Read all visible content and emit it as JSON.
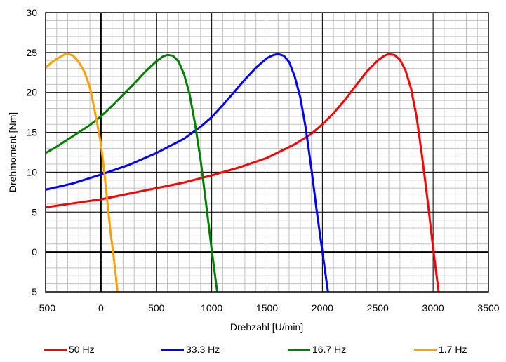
{
  "chart_data": {
    "type": "line",
    "title": "",
    "xlabel": "Drehzahl [U/min]",
    "ylabel": "Drehmoment [Nm]",
    "xlim": [
      -500,
      3500
    ],
    "ylim": [
      -5,
      30
    ],
    "x_ticks": [
      -500,
      0,
      500,
      1000,
      1500,
      2000,
      2500,
      3000,
      3500
    ],
    "y_ticks": [
      -5,
      0,
      5,
      10,
      15,
      20,
      25,
      30
    ],
    "grid": true,
    "minor_grid": {
      "x_step": 100,
      "y_step": 1
    },
    "legend_position": "bottom",
    "series": [
      {
        "name": "50 Hz",
        "color": "#ff0000",
        "points": [
          [
            -500,
            5.6
          ],
          [
            -250,
            6.1
          ],
          [
            0,
            6.6
          ],
          [
            250,
            7.3
          ],
          [
            500,
            8.0
          ],
          [
            750,
            8.7
          ],
          [
            1000,
            9.6
          ],
          [
            1250,
            10.6
          ],
          [
            1500,
            11.8
          ],
          [
            1750,
            13.5
          ],
          [
            1900,
            14.8
          ],
          [
            2000,
            16.0
          ],
          [
            2100,
            17.4
          ],
          [
            2200,
            19.0
          ],
          [
            2300,
            20.8
          ],
          [
            2400,
            22.6
          ],
          [
            2500,
            24.0
          ],
          [
            2560,
            24.6
          ],
          [
            2600,
            24.8
          ],
          [
            2650,
            24.7
          ],
          [
            2700,
            24.1
          ],
          [
            2750,
            22.8
          ],
          [
            2800,
            20.5
          ],
          [
            2850,
            17.0
          ],
          [
            2900,
            12.0
          ],
          [
            2950,
            6.5
          ],
          [
            3000,
            0.5
          ],
          [
            3050,
            -5.0
          ]
        ]
      },
      {
        "name": "33.3 Hz",
        "color": "#0000ff",
        "points": [
          [
            -500,
            7.8
          ],
          [
            -250,
            8.6
          ],
          [
            0,
            9.7
          ],
          [
            250,
            10.9
          ],
          [
            500,
            12.4
          ],
          [
            750,
            14.2
          ],
          [
            900,
            15.7
          ],
          [
            1000,
            16.9
          ],
          [
            1100,
            18.4
          ],
          [
            1200,
            20.0
          ],
          [
            1300,
            21.6
          ],
          [
            1400,
            23.1
          ],
          [
            1500,
            24.3
          ],
          [
            1560,
            24.7
          ],
          [
            1600,
            24.8
          ],
          [
            1650,
            24.6
          ],
          [
            1700,
            23.8
          ],
          [
            1750,
            22.0
          ],
          [
            1800,
            19.4
          ],
          [
            1850,
            15.5
          ],
          [
            1900,
            10.5
          ],
          [
            1950,
            5.0
          ],
          [
            2000,
            0.0
          ],
          [
            2050,
            -5.0
          ]
        ]
      },
      {
        "name": "16.7 Hz",
        "color": "#008000",
        "points": [
          [
            -500,
            12.4
          ],
          [
            -400,
            13.2
          ],
          [
            -300,
            14.1
          ],
          [
            -200,
            15.0
          ],
          [
            -100,
            15.9
          ],
          [
            0,
            17.0
          ],
          [
            100,
            18.3
          ],
          [
            200,
            19.7
          ],
          [
            300,
            21.1
          ],
          [
            400,
            22.6
          ],
          [
            500,
            23.9
          ],
          [
            560,
            24.5
          ],
          [
            600,
            24.7
          ],
          [
            650,
            24.6
          ],
          [
            700,
            23.9
          ],
          [
            750,
            22.3
          ],
          [
            800,
            19.8
          ],
          [
            850,
            16.0
          ],
          [
            900,
            11.5
          ],
          [
            950,
            6.0
          ],
          [
            1000,
            0.3
          ],
          [
            1050,
            -5.0
          ]
        ]
      },
      {
        "name": "1.7 Hz",
        "color": "#ffa000",
        "points": [
          [
            -500,
            23.1
          ],
          [
            -450,
            23.7
          ],
          [
            -400,
            24.2
          ],
          [
            -350,
            24.6
          ],
          [
            -310,
            24.9
          ],
          [
            -250,
            24.6
          ],
          [
            -200,
            23.8
          ],
          [
            -150,
            22.6
          ],
          [
            -100,
            20.6
          ],
          [
            -60,
            18.0
          ],
          [
            -30,
            15.8
          ],
          [
            0,
            13.5
          ],
          [
            30,
            10.0
          ],
          [
            60,
            6.0
          ],
          [
            90,
            2.0
          ],
          [
            110,
            0.0
          ],
          [
            130,
            -2.5
          ],
          [
            150,
            -5.0
          ]
        ]
      }
    ]
  },
  "legend": {
    "items": [
      {
        "label": "50 Hz",
        "color": "#ff0000"
      },
      {
        "label": "33.3 Hz",
        "color": "#0000ff"
      },
      {
        "label": "16.7 Hz",
        "color": "#008000"
      },
      {
        "label": "1.7 Hz",
        "color": "#ffa000"
      }
    ]
  },
  "axes": {
    "x_label": "Drehzahl [U/min]",
    "y_label": "Drehmoment [Nm]"
  }
}
